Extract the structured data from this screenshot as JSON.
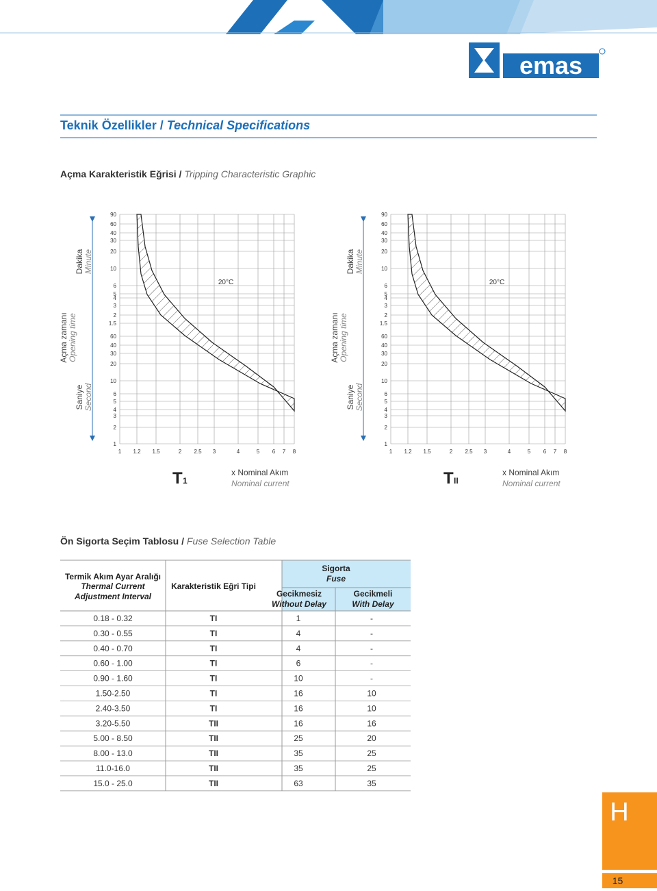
{
  "header": {
    "logo": "emas",
    "section_title_tr": "Teknik Özellikler /",
    "section_title_en": "Technical Specifications"
  },
  "graphic": {
    "title_tr": "Açma Karakteristik Eğrisi /",
    "title_en": "Tripping Characteristic Graphic",
    "charts": [
      {
        "axis_tr": "Açma zamanı",
        "axis_en": "Opening time",
        "minute_tr": "Dakika",
        "minute_en": "Minute",
        "second_tr": "Saniye",
        "second_en": "Second",
        "minute_ticks": [
          "90",
          "60",
          "40",
          "30",
          "20",
          "10",
          "6",
          "5",
          "4",
          "3",
          "2",
          "1.5"
        ],
        "second_ticks": [
          "60",
          "40",
          "30",
          "20",
          "10",
          "6",
          "5",
          "4",
          "3",
          "2",
          "1"
        ],
        "x_ticks": [
          "1",
          "1.2",
          "1.5",
          "2",
          "2.5",
          "3",
          "4",
          "5",
          "6",
          "7",
          "8"
        ],
        "temperature": "20°C",
        "curve_main": "T",
        "curve_sub": "1",
        "x_label_tr": "x Nominal Akım",
        "x_label_en": "Nominal current"
      },
      {
        "axis_tr": "Açma zamanı",
        "axis_en": "Opening time",
        "minute_tr": "Dakika",
        "minute_en": "Minute",
        "second_tr": "Saniye",
        "second_en": "Second",
        "minute_ticks": [
          "90",
          "60",
          "40",
          "30",
          "20",
          "10",
          "6",
          "5",
          "4",
          "3",
          "2",
          "1.5"
        ],
        "second_ticks": [
          "60",
          "40",
          "30",
          "20",
          "10",
          "6",
          "5",
          "4",
          "3",
          "2",
          "1"
        ],
        "x_ticks": [
          "1",
          "1.2",
          "1.5",
          "2",
          "2.5",
          "3",
          "4",
          "5",
          "6",
          "7",
          "8"
        ],
        "temperature": "20°C",
        "curve_main": "T",
        "curve_sub": "II",
        "x_label_tr": "x Nominal Akım",
        "x_label_en": "Nominal current"
      }
    ]
  },
  "fuse": {
    "title_tr": "Ön Sigorta Seçim Tablosu /",
    "title_en": "Fuse Selection Table",
    "headers": {
      "range_tr": "Termik Akım Ayar Aralığı",
      "range_en1": "Thermal Current",
      "range_en2": "Adjustment Interval",
      "curve_tr": "Karakteristik Eğri Tipi",
      "fuse_tr": "Sigorta",
      "fuse_en": "Fuse",
      "nodelay_tr": "Gecikmesiz",
      "nodelay_en": "Without Delay",
      "delay_tr": "Gecikmeli",
      "delay_en": "With Delay"
    },
    "rows": [
      [
        "0.18 - 0.32",
        "TI",
        "1",
        "-"
      ],
      [
        "0.30 - 0.55",
        "TI",
        "4",
        "-"
      ],
      [
        "0.40 - 0.70",
        "TI",
        "4",
        "-"
      ],
      [
        "0.60 - 1.00",
        "TI",
        "6",
        "-"
      ],
      [
        "0.90 - 1.60",
        "TI",
        "10",
        "-"
      ],
      [
        "1.50-2.50",
        "TI",
        "16",
        "10"
      ],
      [
        "2.40-3.50",
        "TI",
        "16",
        "10"
      ],
      [
        "3.20-5.50",
        "TII",
        "16",
        "16"
      ],
      [
        "5.00 - 8.50",
        "TII",
        "25",
        "20"
      ],
      [
        "8.00 - 13.0",
        "TII",
        "35",
        "25"
      ],
      [
        "11.0-16.0",
        "TII",
        "35",
        "25"
      ],
      [
        "15.0 - 25.0",
        "TII",
        "63",
        "35"
      ]
    ]
  },
  "tab": "H",
  "page_number": "15"
}
